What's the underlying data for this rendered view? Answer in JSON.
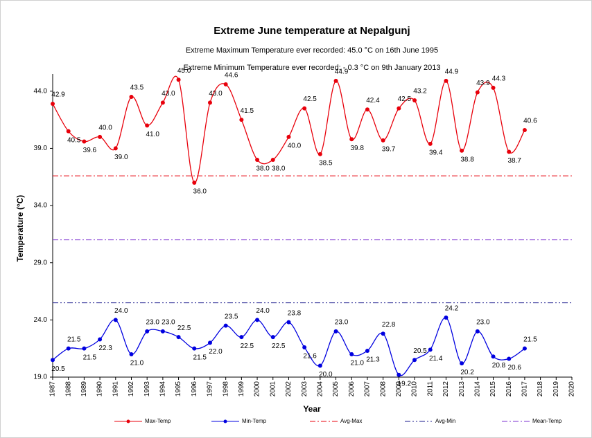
{
  "chart_data": {
    "type": "line",
    "title": "Extreme June temperature at Nepalgunj",
    "subtitle": [
      "Extreme Maximum Temperature ever recorded: 45.0 °C on 16th June 1995",
      "Extreme Minimum Temperature ever recorded: - 0.3 °C on 9th January 2013"
    ],
    "x_label": "Year",
    "y_label": "Temperature (°C)",
    "categories": [
      "1987",
      "1988",
      "1989",
      "1990",
      "1991",
      "1992",
      "1993",
      "1994",
      "1995",
      "1996",
      "1997",
      "1998",
      "1999",
      "2000",
      "2001",
      "2002",
      "2003",
      "2004",
      "2005",
      "2006",
      "2007",
      "2008",
      "2009",
      "2010",
      "2011",
      "2012",
      "2013",
      "2014",
      "2015",
      "2016",
      "2017",
      "2018",
      "2019",
      "2020"
    ],
    "series": [
      {
        "name": "Max-Temp",
        "color": "#e8000b",
        "values": [
          42.9,
          40.5,
          39.6,
          40.0,
          39.0,
          43.5,
          41.0,
          43.0,
          45.0,
          36.0,
          43.0,
          44.6,
          41.5,
          38.0,
          38.0,
          40.0,
          42.5,
          38.5,
          44.9,
          39.8,
          42.4,
          39.7,
          42.5,
          43.2,
          39.4,
          44.9,
          38.8,
          43.9,
          44.3,
          38.7,
          40.6,
          null,
          null,
          null
        ],
        "value_labels": [
          "42.9",
          "40.5",
          "39.6",
          "40.0",
          "39.0",
          "43.5",
          "41.0",
          "43.0",
          "45.0",
          "36.0",
          "43.0",
          "44.6",
          "41.5",
          "38.0",
          "38.0",
          "40.0",
          "42.5",
          "38.5",
          "44.9",
          "39.8",
          "42.4",
          "39.7",
          "42.5",
          "43.2",
          "39.4",
          "44.9",
          "38.8",
          "43.9",
          "44.3",
          "38.7",
          "40.6",
          null,
          null,
          null
        ]
      },
      {
        "name": "Min-Temp",
        "color": "#0000e0",
        "values": [
          20.5,
          21.5,
          21.5,
          22.3,
          24.0,
          21.0,
          23.0,
          23.0,
          22.5,
          21.5,
          22.0,
          23.5,
          22.5,
          24.0,
          22.5,
          23.8,
          21.6,
          20.0,
          23.0,
          21.0,
          21.3,
          22.8,
          19.2,
          20.5,
          21.4,
          24.2,
          20.2,
          23.0,
          20.8,
          20.6,
          21.5,
          null,
          null,
          null
        ],
        "value_labels": [
          "20.5",
          "21.5",
          "21.5",
          "22.3",
          "24.0",
          "21.0",
          "23.0",
          "23.0",
          "22.5",
          "21.5",
          "22.0",
          "23.5",
          "22.5",
          "24.0",
          "22.5",
          "23.8",
          "21.6",
          "20.0",
          "23.0",
          "21.0",
          "21.3",
          "22.8",
          "19.2",
          "20.5",
          "21.4",
          "24.2",
          "20.2",
          "23.0",
          "20.8",
          "20.6",
          "21.5",
          null,
          null,
          null
        ]
      }
    ],
    "reference_lines": [
      {
        "name": "Avg-Max",
        "color": "#e8000b",
        "value": 36.6,
        "dash": "8 3 2 3"
      },
      {
        "name": "Avg-Min",
        "color": "#1a1a8c",
        "value": 25.5,
        "dash": "8 3 2 3 2 3"
      },
      {
        "name": "Mean-Temp",
        "color": "#7b2fd0",
        "value": 31.0,
        "dash": "8 3 2 3"
      }
    ],
    "ylim": [
      19,
      45.5
    ],
    "yticks": [
      {
        "value": 19,
        "label": "19.0"
      },
      {
        "value": 24,
        "label": "24.0"
      },
      {
        "value": 29,
        "label": "29.0"
      },
      {
        "value": 34,
        "label": "34.0"
      },
      {
        "value": 39,
        "label": "39.0"
      },
      {
        "value": 44,
        "label": "44.0"
      }
    ],
    "legend": "bottom"
  }
}
